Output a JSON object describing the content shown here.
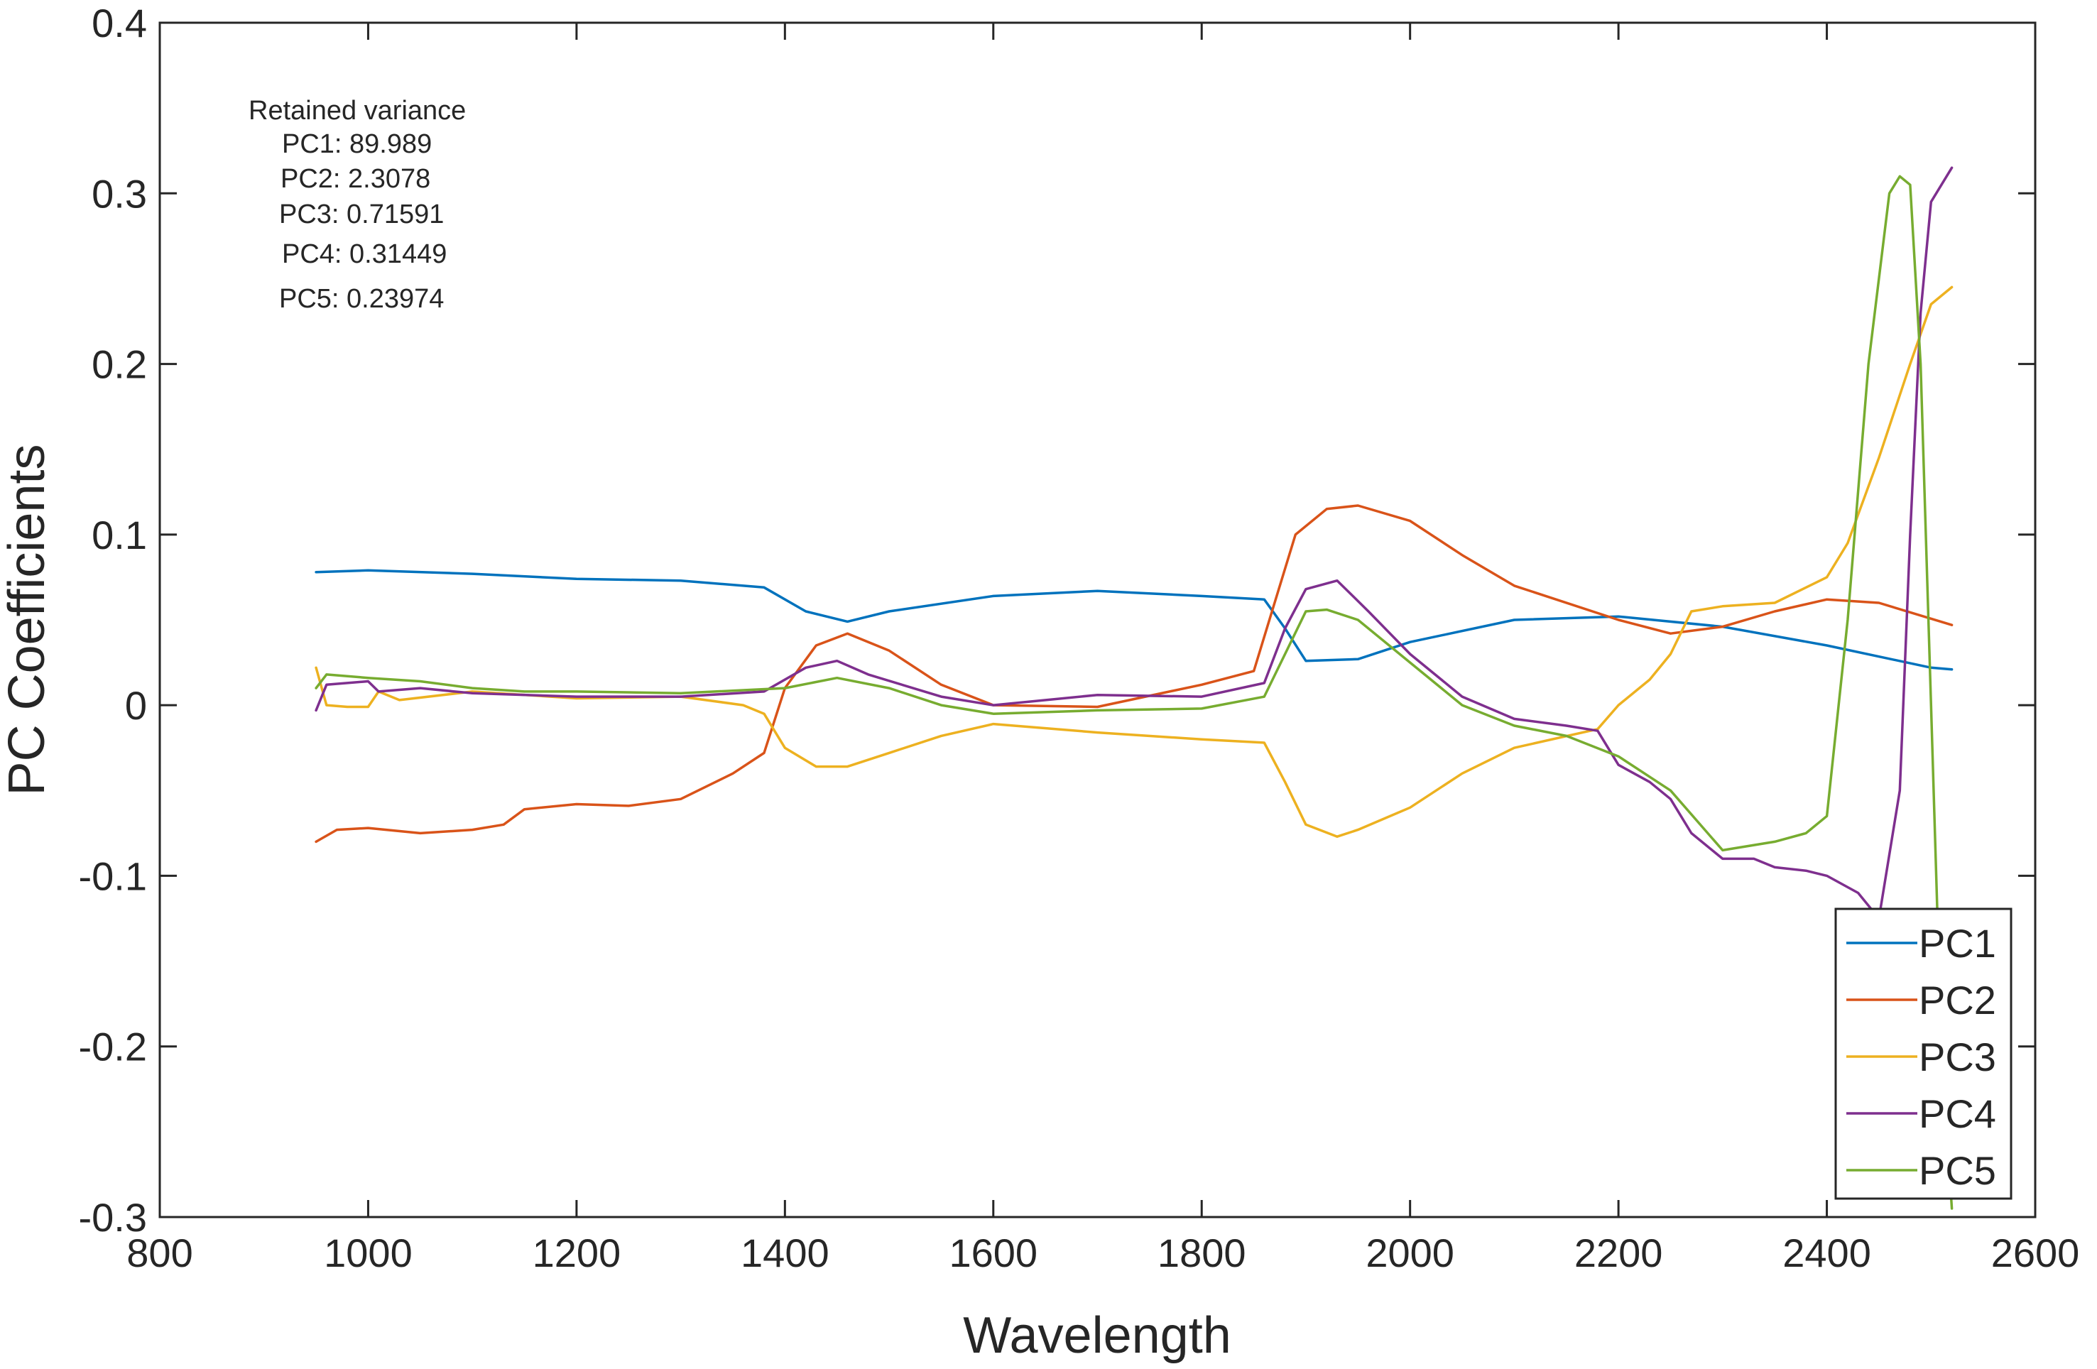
{
  "chart_data": {
    "type": "line",
    "xlabel": "Wavelength",
    "ylabel": "PC Coefficients",
    "xlim": [
      800,
      2600
    ],
    "ylim": [
      -0.3,
      0.4
    ],
    "xticks": [
      800,
      1000,
      1200,
      1400,
      1600,
      1800,
      2000,
      2200,
      2400,
      2600
    ],
    "yticks": [
      -0.3,
      -0.2,
      -0.1,
      0,
      0.1,
      0.2,
      0.3,
      0.4
    ],
    "xtick_labels": [
      "800",
      "1000",
      "1200",
      "1400",
      "1600",
      "1800",
      "2000",
      "2200",
      "2400",
      "2600"
    ],
    "ytick_labels": [
      "-0.3",
      "-0.2",
      "-0.1",
      "0",
      "0.1",
      "0.2",
      "0.3",
      "0.4"
    ],
    "grid": false,
    "legend_position": "bottom-right",
    "annotation": {
      "title": "Retained variance",
      "lines": [
        "PC1: 89.989",
        "PC2: 2.3078",
        "PC3: 0.71591",
        "PC4: 0.31449",
        "PC5: 0.23974"
      ]
    },
    "series": [
      {
        "name": "PC1",
        "color": "#0072BD",
        "x": [
          950,
          1000,
          1100,
          1200,
          1300,
          1380,
          1420,
          1460,
          1500,
          1600,
          1700,
          1800,
          1860,
          1880,
          1900,
          1950,
          2000,
          2100,
          2200,
          2300,
          2400,
          2500,
          2520
        ],
        "y": [
          0.078,
          0.079,
          0.077,
          0.074,
          0.073,
          0.069,
          0.055,
          0.049,
          0.055,
          0.064,
          0.067,
          0.064,
          0.062,
          0.045,
          0.026,
          0.027,
          0.037,
          0.05,
          0.052,
          0.046,
          0.035,
          0.022,
          0.021
        ]
      },
      {
        "name": "PC2",
        "color": "#D95319",
        "x": [
          950,
          970,
          1000,
          1050,
          1100,
          1130,
          1150,
          1200,
          1250,
          1300,
          1350,
          1380,
          1400,
          1430,
          1460,
          1500,
          1550,
          1600,
          1700,
          1800,
          1850,
          1870,
          1890,
          1920,
          1950,
          2000,
          2050,
          2100,
          2200,
          2250,
          2300,
          2350,
          2400,
          2450,
          2520
        ],
        "y": [
          -0.08,
          -0.073,
          -0.072,
          -0.075,
          -0.073,
          -0.07,
          -0.061,
          -0.058,
          -0.059,
          -0.055,
          -0.04,
          -0.028,
          0.01,
          0.035,
          0.042,
          0.032,
          0.012,
          0.0,
          -0.001,
          0.012,
          0.02,
          0.06,
          0.1,
          0.115,
          0.117,
          0.108,
          0.088,
          0.07,
          0.05,
          0.042,
          0.046,
          0.055,
          0.062,
          0.06,
          0.047
        ]
      },
      {
        "name": "PC3",
        "color": "#EDB120",
        "x": [
          950,
          960,
          980,
          1000,
          1010,
          1030,
          1100,
          1200,
          1300,
          1360,
          1380,
          1400,
          1430,
          1460,
          1500,
          1550,
          1600,
          1700,
          1800,
          1860,
          1880,
          1900,
          1930,
          1950,
          2000,
          2050,
          2100,
          2180,
          2200,
          2230,
          2250,
          2270,
          2300,
          2350,
          2400,
          2420,
          2450,
          2480,
          2500,
          2520
        ],
        "y": [
          0.022,
          0.0,
          -0.001,
          -0.001,
          0.008,
          0.003,
          0.008,
          0.004,
          0.005,
          0.0,
          -0.005,
          -0.025,
          -0.036,
          -0.036,
          -0.028,
          -0.018,
          -0.011,
          -0.016,
          -0.02,
          -0.022,
          -0.045,
          -0.07,
          -0.077,
          -0.073,
          -0.06,
          -0.04,
          -0.025,
          -0.014,
          0.0,
          0.015,
          0.03,
          0.055,
          0.058,
          0.06,
          0.075,
          0.095,
          0.145,
          0.2,
          0.235,
          0.245
        ]
      },
      {
        "name": "PC4",
        "color": "#7E2F8E",
        "x": [
          950,
          960,
          1000,
          1010,
          1050,
          1100,
          1200,
          1300,
          1380,
          1420,
          1450,
          1480,
          1550,
          1600,
          1700,
          1800,
          1860,
          1880,
          1900,
          1930,
          1960,
          2000,
          2050,
          2100,
          2150,
          2180,
          2200,
          2230,
          2250,
          2270,
          2300,
          2330,
          2350,
          2380,
          2400,
          2430,
          2450,
          2470,
          2480,
          2490,
          2500,
          2520
        ],
        "y": [
          -0.003,
          0.012,
          0.014,
          0.008,
          0.01,
          0.007,
          0.005,
          0.005,
          0.008,
          0.022,
          0.026,
          0.018,
          0.005,
          0.0,
          0.006,
          0.005,
          0.013,
          0.045,
          0.068,
          0.073,
          0.055,
          0.03,
          0.005,
          -0.008,
          -0.012,
          -0.015,
          -0.035,
          -0.045,
          -0.055,
          -0.075,
          -0.09,
          -0.09,
          -0.095,
          -0.097,
          -0.1,
          -0.11,
          -0.125,
          -0.05,
          0.1,
          0.23,
          0.295,
          0.315
        ]
      },
      {
        "name": "PC5",
        "color": "#77AC30",
        "x": [
          950,
          960,
          1000,
          1050,
          1100,
          1150,
          1200,
          1300,
          1400,
          1450,
          1500,
          1550,
          1600,
          1700,
          1800,
          1860,
          1880,
          1900,
          1920,
          1950,
          2000,
          2050,
          2100,
          2150,
          2200,
          2250,
          2300,
          2350,
          2380,
          2400,
          2420,
          2440,
          2460,
          2470,
          2480,
          2490,
          2500,
          2510,
          2520
        ],
        "y": [
          0.01,
          0.018,
          0.016,
          0.014,
          0.01,
          0.008,
          0.008,
          0.007,
          0.01,
          0.016,
          0.01,
          0.0,
          -0.005,
          -0.003,
          -0.002,
          0.005,
          0.03,
          0.055,
          0.056,
          0.05,
          0.025,
          0.0,
          -0.012,
          -0.018,
          -0.03,
          -0.05,
          -0.085,
          -0.08,
          -0.075,
          -0.065,
          0.05,
          0.2,
          0.3,
          0.31,
          0.305,
          0.2,
          0.0,
          -0.2,
          -0.295
        ]
      }
    ]
  }
}
